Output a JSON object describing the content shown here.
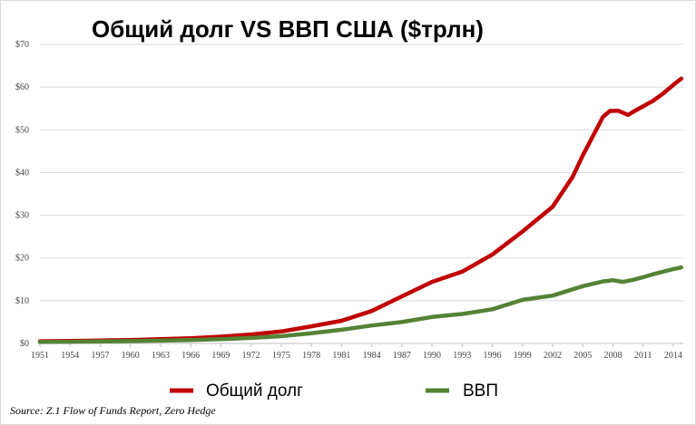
{
  "chart_data": {
    "type": "line",
    "title": "Общий долг VS ВВП США ($трлн)",
    "xlabel": "",
    "ylabel": "",
    "xlim": [
      1951,
      2015
    ],
    "ylim": [
      0,
      70
    ],
    "grid": true,
    "legend_placement": "bottom",
    "x_ticks": [
      "1951",
      "1954",
      "1957",
      "1960",
      "1963",
      "1966",
      "1969",
      "1972",
      "1975",
      "1978",
      "1981",
      "1984",
      "1987",
      "1990",
      "1993",
      "1996",
      "1999",
      "2002",
      "2005",
      "2008",
      "2011",
      "2014"
    ],
    "y_ticks": [
      "$0",
      "$10",
      "$20",
      "$30",
      "$40",
      "$50",
      "$60",
      "$70"
    ],
    "series": [
      {
        "name": "Общий долг",
        "color": "#c00000",
        "x": [
          1951,
          1954,
          1957,
          1960,
          1963,
          1966,
          1969,
          1972,
          1975,
          1978,
          1981,
          1984,
          1987,
          1990,
          1993,
          1996,
          1999,
          2002,
          2004,
          2005,
          2006,
          2007,
          2007.7,
          2008.5,
          2009.5,
          2010.3,
          2011,
          2012,
          2013,
          2014,
          2014.8
        ],
        "y": [
          0.5,
          0.6,
          0.7,
          0.8,
          1.0,
          1.2,
          1.6,
          2.1,
          2.8,
          4.0,
          5.3,
          7.6,
          11.0,
          14.4,
          16.8,
          20.8,
          26.2,
          32.0,
          39.0,
          44.0,
          48.5,
          53.0,
          54.4,
          54.5,
          53.5,
          54.6,
          55.5,
          56.8,
          58.5,
          60.5,
          62.0
        ]
      },
      {
        "name": "ВВП",
        "color": "#548235",
        "x": [
          1951,
          1954,
          1957,
          1960,
          1963,
          1966,
          1969,
          1972,
          1975,
          1978,
          1981,
          1984,
          1987,
          1990,
          1993,
          1996,
          1999,
          2002,
          2005,
          2007,
          2008,
          2009,
          2010,
          2011,
          2012,
          2013,
          2014,
          2014.8
        ],
        "y": [
          0.35,
          0.4,
          0.47,
          0.55,
          0.65,
          0.8,
          1.0,
          1.3,
          1.7,
          2.4,
          3.2,
          4.2,
          5.0,
          6.2,
          6.9,
          8.0,
          10.2,
          11.2,
          13.4,
          14.5,
          14.8,
          14.4,
          14.9,
          15.5,
          16.2,
          16.8,
          17.4,
          17.8
        ]
      }
    ]
  },
  "legend": {
    "debt": "Общий долг",
    "gdp": "ВВП"
  },
  "source": "Source: Z.1 Flow of Funds Report, Zero Hedge"
}
